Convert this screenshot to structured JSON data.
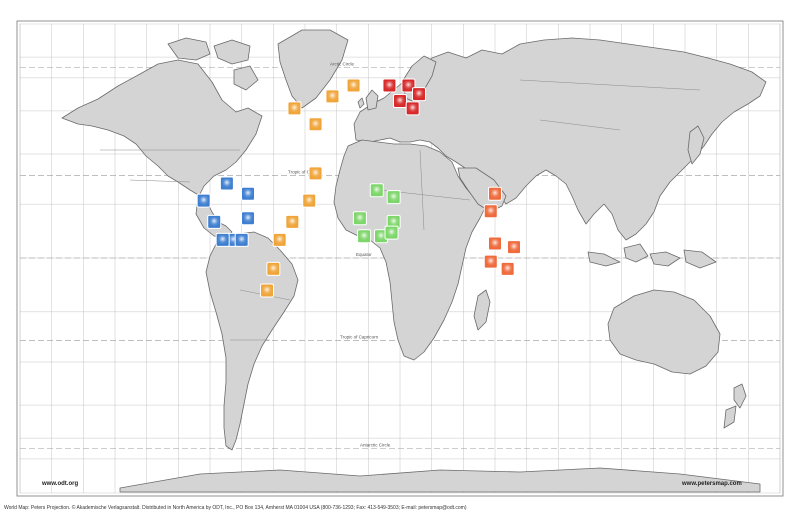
{
  "map": {
    "lines": {
      "arctic": "Arctic Circle",
      "cancer": "Tropic of Cancer",
      "equator": "Equator",
      "capricorn": "Tropic of Capricorn",
      "antarctic": "Antarctic Circle"
    },
    "footer": {
      "credits": "World Map: Peters Projection. © Akademische Verlagsanstalt. Distributed in North America by ODT, Inc., PO Box 134, Amherst MA 01004 USA (800-736-1293; Fax: 413-549-3503; E-mail: petersmap@odt.com)",
      "left_url": "www.odt.org",
      "right_url": "www.petersmap.com"
    },
    "colors": {
      "blue": "#3f7fd1",
      "orange": "#f0a53a",
      "green": "#7dd66a",
      "red": "#d82a2a",
      "coral": "#ef6a3c"
    },
    "markers": [
      {
        "group": "blue",
        "lon": -93,
        "lat": 16
      },
      {
        "group": "blue",
        "lon": -82,
        "lat": 21
      },
      {
        "group": "blue",
        "lon": -72,
        "lat": 18
      },
      {
        "group": "blue",
        "lon": -88,
        "lat": 10
      },
      {
        "group": "blue",
        "lon": -72,
        "lat": 11
      },
      {
        "group": "blue",
        "lon": -79,
        "lat": 5
      },
      {
        "group": "blue",
        "lon": -84,
        "lat": 5
      },
      {
        "group": "blue",
        "lon": -75,
        "lat": 5
      },
      {
        "group": "orange",
        "lon": -50,
        "lat": 46
      },
      {
        "group": "orange",
        "lon": -40,
        "lat": 40
      },
      {
        "group": "orange",
        "lon": -32,
        "lat": 51
      },
      {
        "group": "orange",
        "lon": -22,
        "lat": 56
      },
      {
        "group": "orange",
        "lon": -40,
        "lat": 24
      },
      {
        "group": "orange",
        "lon": -43,
        "lat": 16
      },
      {
        "group": "orange",
        "lon": -51,
        "lat": 10
      },
      {
        "group": "orange",
        "lon": -57,
        "lat": 5
      },
      {
        "group": "orange",
        "lon": -60,
        "lat": -3
      },
      {
        "group": "orange",
        "lon": -63,
        "lat": -9
      },
      {
        "group": "green",
        "lon": -11,
        "lat": 19
      },
      {
        "group": "green",
        "lon": -3,
        "lat": 17
      },
      {
        "group": "green",
        "lon": -19,
        "lat": 11
      },
      {
        "group": "green",
        "lon": -3,
        "lat": 10
      },
      {
        "group": "green",
        "lon": -17,
        "lat": 6
      },
      {
        "group": "green",
        "lon": -9,
        "lat": 6
      },
      {
        "group": "green",
        "lon": -4,
        "lat": 7
      },
      {
        "group": "red",
        "lon": -5,
        "lat": 56
      },
      {
        "group": "red",
        "lon": 4,
        "lat": 56
      },
      {
        "group": "red",
        "lon": 9,
        "lat": 52
      },
      {
        "group": "red",
        "lon": 0,
        "lat": 49
      },
      {
        "group": "red",
        "lon": 6,
        "lat": 46
      },
      {
        "group": "coral",
        "lon": 45,
        "lat": 18
      },
      {
        "group": "coral",
        "lon": 43,
        "lat": 13
      },
      {
        "group": "coral",
        "lon": 45,
        "lat": 4
      },
      {
        "group": "coral",
        "lon": 43,
        "lat": -1
      },
      {
        "group": "coral",
        "lon": 54,
        "lat": 3
      },
      {
        "group": "coral",
        "lon": 51,
        "lat": -3
      }
    ]
  }
}
